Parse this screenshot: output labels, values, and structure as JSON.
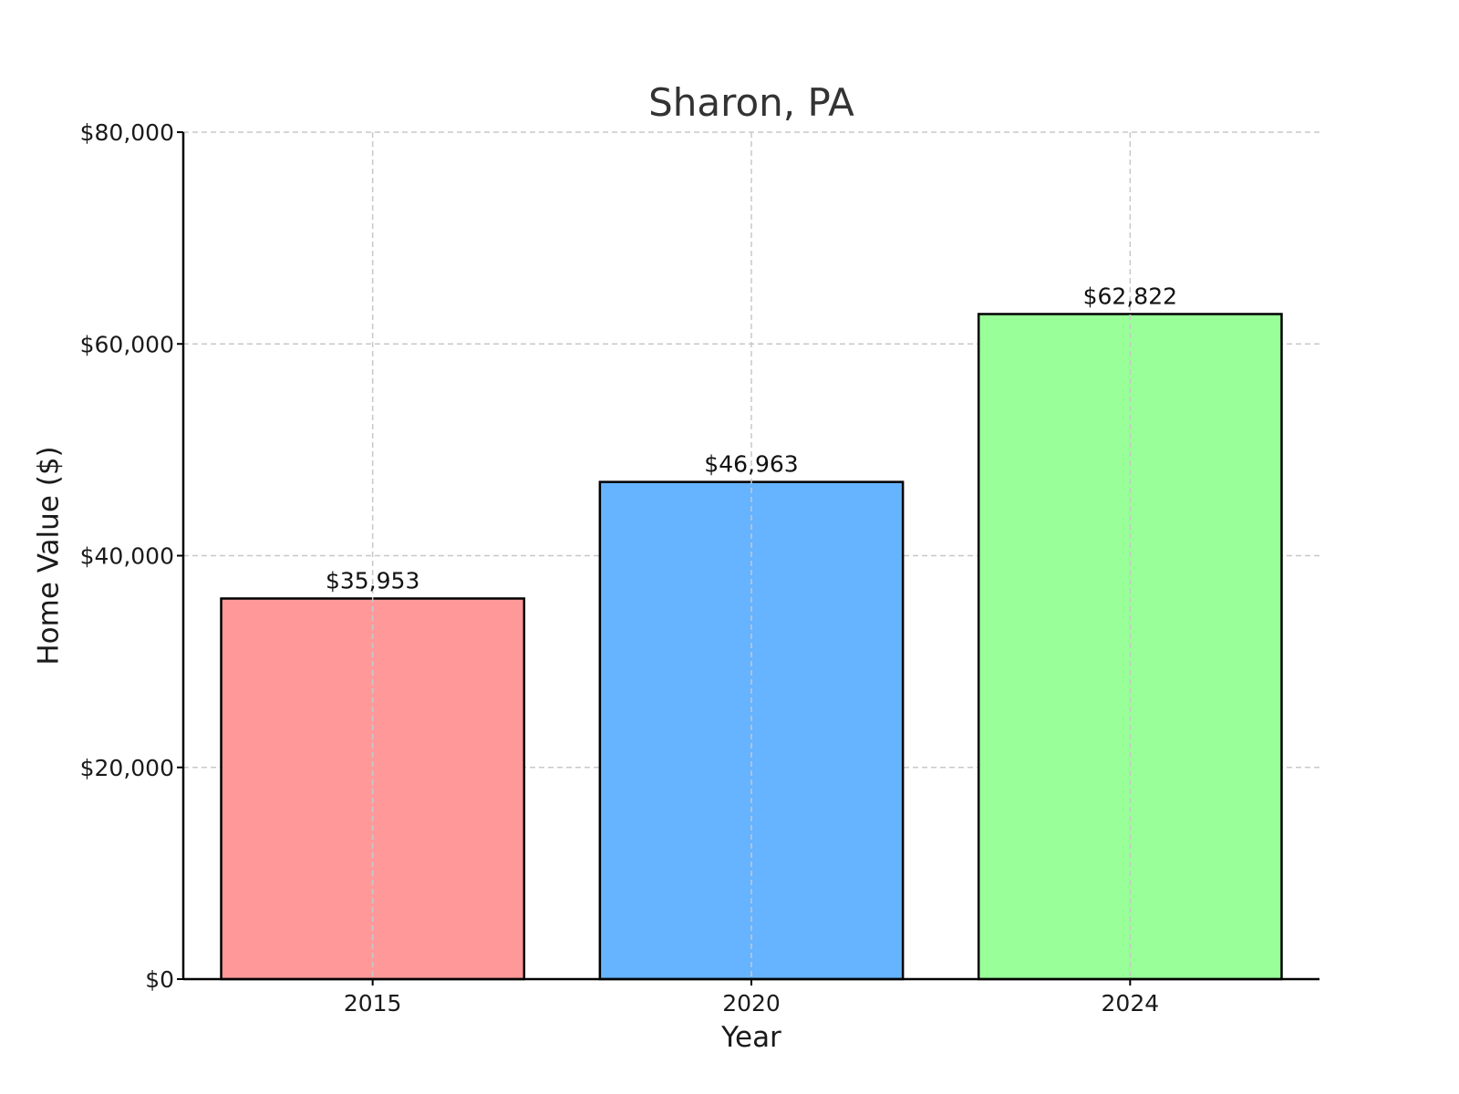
{
  "chart_data": {
    "type": "bar",
    "title": "Sharon, PA",
    "xlabel": "Year",
    "ylabel": "Home Value ($)",
    "categories": [
      "2015",
      "2020",
      "2024"
    ],
    "values": [
      35953,
      46963,
      62822
    ],
    "value_labels": [
      "$35,953",
      "$46,963",
      "$62,822"
    ],
    "colors": [
      "#ff9999",
      "#66b3ff",
      "#99ff99"
    ],
    "edge_color": "#000000",
    "ylim": [
      0,
      80000
    ],
    "y_ticks": [
      0,
      20000,
      40000,
      60000,
      80000
    ],
    "y_tick_labels": [
      "$0",
      "$20,000",
      "$40,000",
      "$60,000",
      "$80,000"
    ],
    "grid": true,
    "grid_style": "dashed"
  }
}
